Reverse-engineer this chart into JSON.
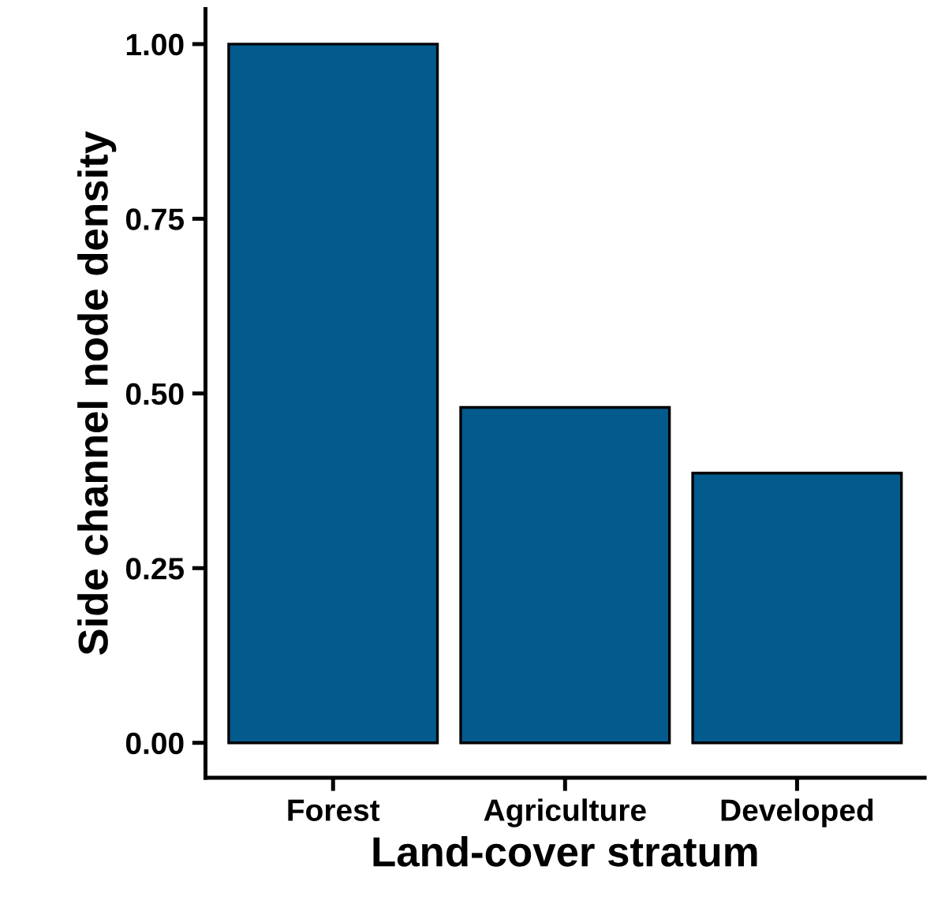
{
  "chart_data": {
    "type": "bar",
    "xlabel": "Land-cover stratum",
    "ylabel": "Side channel node density",
    "categories": [
      "Forest",
      "Agriculture",
      "Developed"
    ],
    "values": [
      1.0,
      0.48,
      0.386
    ],
    "color": "#035a8c",
    "ylim": [
      -0.05,
      1.05
    ],
    "yticks": [
      {
        "value": 0,
        "label": "0.00"
      },
      {
        "value": 0.25,
        "label": "0.25"
      },
      {
        "value": 0.5,
        "label": "0.50"
      },
      {
        "value": 0.75,
        "label": "0.75"
      },
      {
        "value": 1,
        "label": "1.00"
      }
    ],
    "grid": false,
    "legend": false
  }
}
